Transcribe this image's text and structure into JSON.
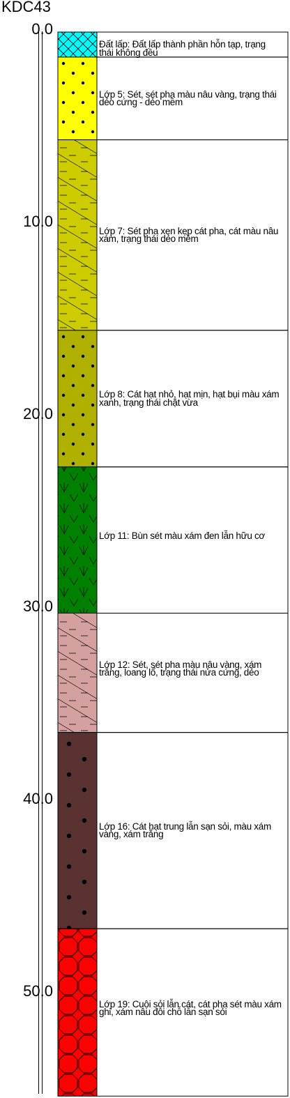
{
  "borehole": {
    "name": "KDC43"
  },
  "depth_axis": {
    "ticks": [
      "0.0",
      "10.0",
      "20.0",
      "30.0",
      "40.0",
      "50.0"
    ],
    "min": 0,
    "max": 55
  },
  "layers": [
    {
      "top": 0.0,
      "bottom": 1.3,
      "pattern": "crosshatch",
      "fill": "#00ffff",
      "desc": "Đất lấp: Đất lấp thành phần hỗn tạp, trạng thái không đều"
    },
    {
      "top": 1.3,
      "bottom": 5.6,
      "pattern": "dots",
      "fill": "#ffff00",
      "desc": "Lớp 5: Sét, sét pha màu nâu vàng, trạng thái dẻo cứng - dẻo mềm"
    },
    {
      "top": 5.6,
      "bottom": 15.5,
      "pattern": "clay-dash",
      "fill": "#cccc00",
      "desc": "Lớp 7: Sét pha xen kẹp cát pha, cát màu nâu xám, trạng thái dẻo mềm"
    },
    {
      "top": 15.5,
      "bottom": 22.6,
      "pattern": "dots",
      "fill": "#b0b000",
      "desc": "Lớp 8: Cát hạt nhỏ, hạt mịn, hạt bụi màu xám xanh, trạng thái chặt vừa"
    },
    {
      "top": 22.6,
      "bottom": 30.2,
      "pattern": "organic",
      "fill": "#008000",
      "desc": "Lớp 11: Bùn sét màu xám đen lẫn hữu cơ"
    },
    {
      "top": 30.2,
      "bottom": 36.4,
      "pattern": "clay-dash",
      "fill": "#d4a0a0",
      "desc": "Lớp 12: Sét, sét pha màu nâu vàng, xám trắng, loang lổ, trạng thái nửa cứng, dẻo"
    },
    {
      "top": 36.4,
      "bottom": 46.6,
      "pattern": "big-dots",
      "fill": "#5a3232",
      "desc": "Lớp 16: Cát hạt trung lẫn sạn sỏi, màu xám vàng, xám trắng"
    },
    {
      "top": 46.6,
      "bottom": 55.3,
      "pattern": "gravel",
      "fill": "#ff0000",
      "desc": "Lớp 19: Cuội sỏi lẫn cát, cát pha sét màu xám ghi, xám nâu đôi chỗ lẫn sạn sỏi"
    }
  ]
}
